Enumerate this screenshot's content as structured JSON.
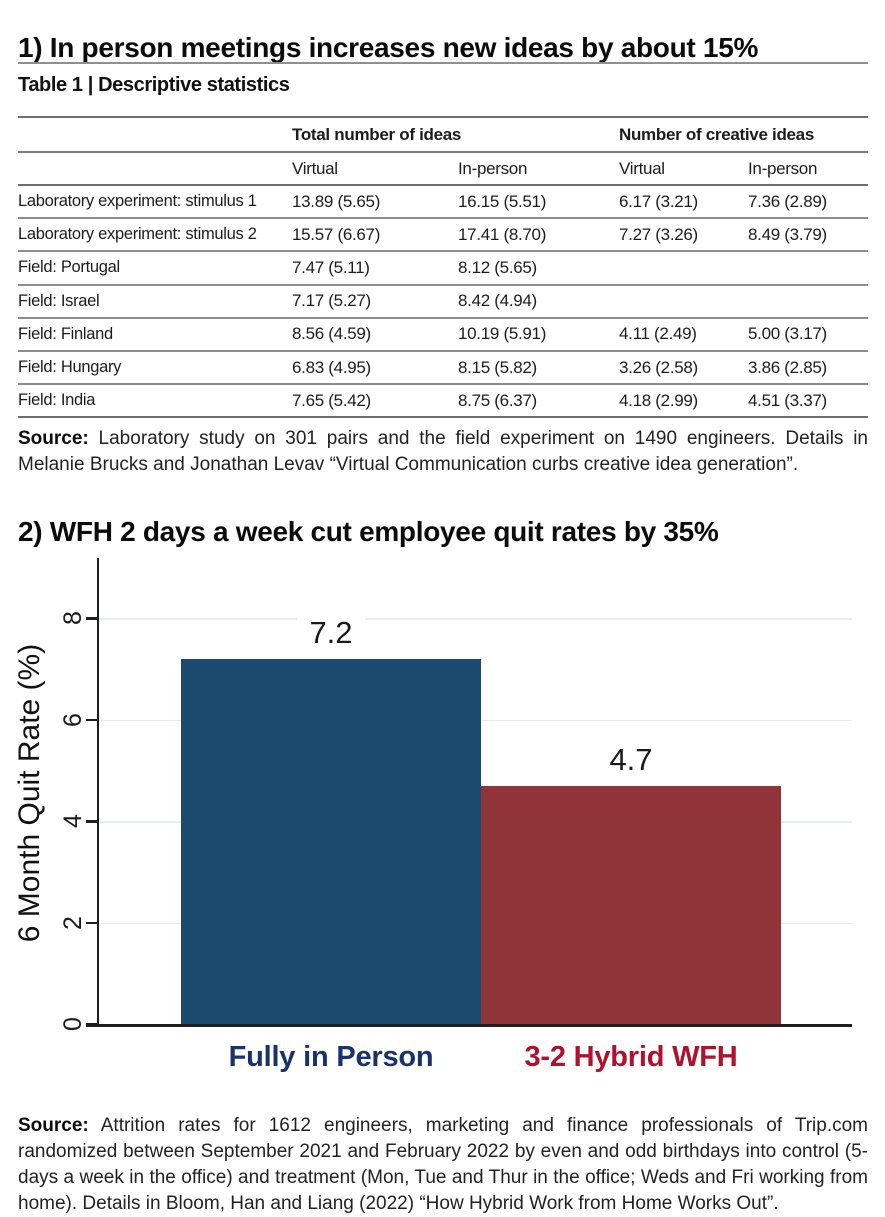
{
  "titles": {
    "section1": "1) In person meetings increases new ideas by about 15%",
    "section2": "2) WFH 2 days a week cut employee quit rates by 35%"
  },
  "table": {
    "caption": "Table 1 | Descriptive statistics",
    "group_headers": [
      "Total number of ideas",
      "Number of creative ideas"
    ],
    "sub_headers": [
      "Virtual",
      "In-person",
      "Virtual",
      "In-person"
    ],
    "rows": [
      {
        "label": "Laboratory experiment: stimulus 1",
        "c1": "13.89 (5.65)",
        "c2": "16.15 (5.51)",
        "c3": "6.17 (3.21)",
        "c4": "7.36 (2.89)"
      },
      {
        "label": "Laboratory experiment: stimulus 2",
        "c1": "15.57 (6.67)",
        "c2": "17.41 (8.70)",
        "c3": "7.27 (3.26)",
        "c4": "8.49 (3.79)"
      },
      {
        "label": "Field: Portugal",
        "c1": "7.47 (5.11)",
        "c2": "8.12 (5.65)",
        "c3": "",
        "c4": ""
      },
      {
        "label": "Field: Israel",
        "c1": "7.17 (5.27)",
        "c2": "8.42 (4.94)",
        "c3": "",
        "c4": ""
      },
      {
        "label": "Field: Finland",
        "c1": "8.56 (4.59)",
        "c2": "10.19 (5.91)",
        "c3": "4.11 (2.49)",
        "c4": "5.00 (3.17)"
      },
      {
        "label": "Field: Hungary",
        "c1": "6.83 (4.95)",
        "c2": "8.15 (5.82)",
        "c3": "3.26 (2.58)",
        "c4": "3.86 (2.85)"
      },
      {
        "label": "Field: India",
        "c1": "7.65 (5.42)",
        "c2": "8.75 (6.37)",
        "c3": "4.18 (2.99)",
        "c4": "4.51 (3.37)"
      }
    ]
  },
  "source1": {
    "prefix": "Source:",
    "text": "Laboratory study on 301 pairs and the field experiment on 1490 engineers. Details in Melanie Brucks and Jonathan Levav “Virtual Communication curbs creative idea generation”."
  },
  "chart_data": {
    "type": "bar",
    "title": "2) WFH 2 days a week cut employee quit rates by 35%",
    "categories": [
      "Fully in Person",
      "3-2 Hybrid WFH"
    ],
    "values": [
      7.2,
      4.7
    ],
    "xlabel": "",
    "ylabel": "6 Month Quit Rate (%)",
    "yticks": [
      0,
      2,
      4,
      6,
      8
    ],
    "ylim": [
      0,
      9.3
    ],
    "grid": true,
    "legend_position": "none",
    "bar_colors": [
      "#1C4A6E",
      "#903439"
    ],
    "category_label_colors": [
      "#1A336E",
      "#B0122D"
    ]
  },
  "source2": {
    "prefix": "Source:",
    "text": "Attrition rates for 1612 engineers, marketing and finance professionals of Trip.com randomized between September 2021 and February 2022 by even and odd birthdays into control (5-days a week in the office) and treatment (Mon, Tue and Thur in the office; Weds and Fri working from home). Details in Bloom, Han and Liang (2022) “How Hybrid Work from Home Works Out”."
  }
}
